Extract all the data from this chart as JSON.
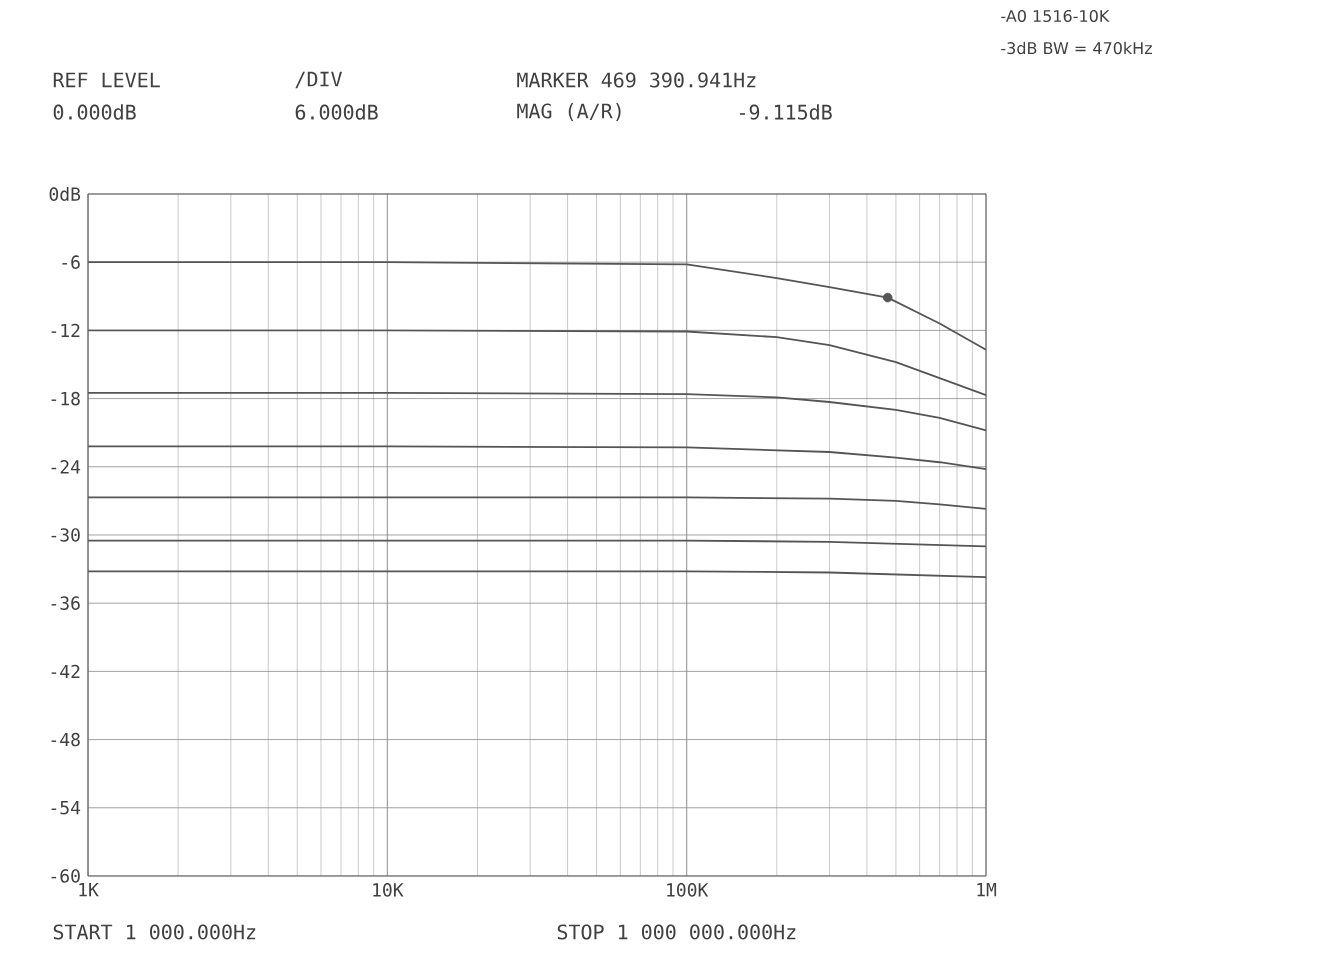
{
  "chart_data": {
    "type": "line",
    "log": "x",
    "grid": true,
    "marker": "none",
    "line_style": "solid",
    "xlim": [
      1000,
      1000000
    ],
    "ylim": [
      -60,
      0
    ],
    "xticks": [
      {
        "value": 1000,
        "label": "1K"
      },
      {
        "value": 10000,
        "label": "10K"
      },
      {
        "value": 100000,
        "label": "100K"
      },
      {
        "value": 1000000,
        "label": "1M"
      }
    ],
    "yticks": [
      {
        "value": 0,
        "label": "0dB"
      },
      -6,
      -12,
      -18,
      -24,
      -30,
      -36,
      -42,
      -48,
      -54,
      -60
    ],
    "series": [
      {
        "color": "#555555",
        "x": [
          1000,
          10000,
          100000,
          200000,
          300000,
          469390.941,
          700000,
          1000000
        ],
        "values": [
          -6.0,
          -6.0,
          -6.2,
          -7.4,
          -8.2,
          -9.115,
          -11.4,
          -13.7
        ]
      },
      {
        "color": "#555555",
        "x": [
          1000,
          10000,
          100000,
          200000,
          300000,
          500000,
          700000,
          1000000
        ],
        "values": [
          -12.0,
          -12.0,
          -12.1,
          -12.6,
          -13.3,
          -14.8,
          -16.2,
          -17.7
        ]
      },
      {
        "color": "#555555",
        "x": [
          1000,
          10000,
          100000,
          200000,
          300000,
          500000,
          700000,
          1000000
        ],
        "values": [
          -17.5,
          -17.5,
          -17.6,
          -17.9,
          -18.3,
          -19.0,
          -19.7,
          -20.8
        ]
      },
      {
        "color": "#555555",
        "x": [
          1000,
          10000,
          100000,
          300000,
          500000,
          700000,
          1000000
        ],
        "values": [
          -22.2,
          -22.2,
          -22.3,
          -22.7,
          -23.2,
          -23.6,
          -24.2
        ]
      },
      {
        "color": "#555555",
        "x": [
          1000,
          10000,
          100000,
          300000,
          500000,
          700000,
          1000000
        ],
        "values": [
          -26.7,
          -26.7,
          -26.7,
          -26.8,
          -27.0,
          -27.3,
          -27.7
        ]
      },
      {
        "color": "#555555",
        "x": [
          1000,
          10000,
          100000,
          300000,
          1000000
        ],
        "values": [
          -30.5,
          -30.5,
          -30.5,
          -30.6,
          -31.0
        ]
      },
      {
        "color": "#555555",
        "x": [
          1000,
          10000,
          100000,
          300000,
          1000000
        ],
        "values": [
          -33.2,
          -33.2,
          -33.2,
          -33.3,
          -33.7
        ]
      },
      {
        "type": "scatter",
        "marker": "circle",
        "color": "#555555",
        "x": [
          469390.941
        ],
        "values": [
          -9.115
        ]
      }
    ],
    "annotations": [
      "REF LEVEL",
      "0.000dB",
      "/DIV",
      "6.000dB",
      "MARKER 469 390.941Hz",
      "MAG (A/R)",
      "-9.115dB",
      "START 1 000.000Hz",
      "STOP 1 000 000.000Hz",
      "-A0 1516-10K",
      "-3dB BW = 470kHz"
    ]
  }
}
